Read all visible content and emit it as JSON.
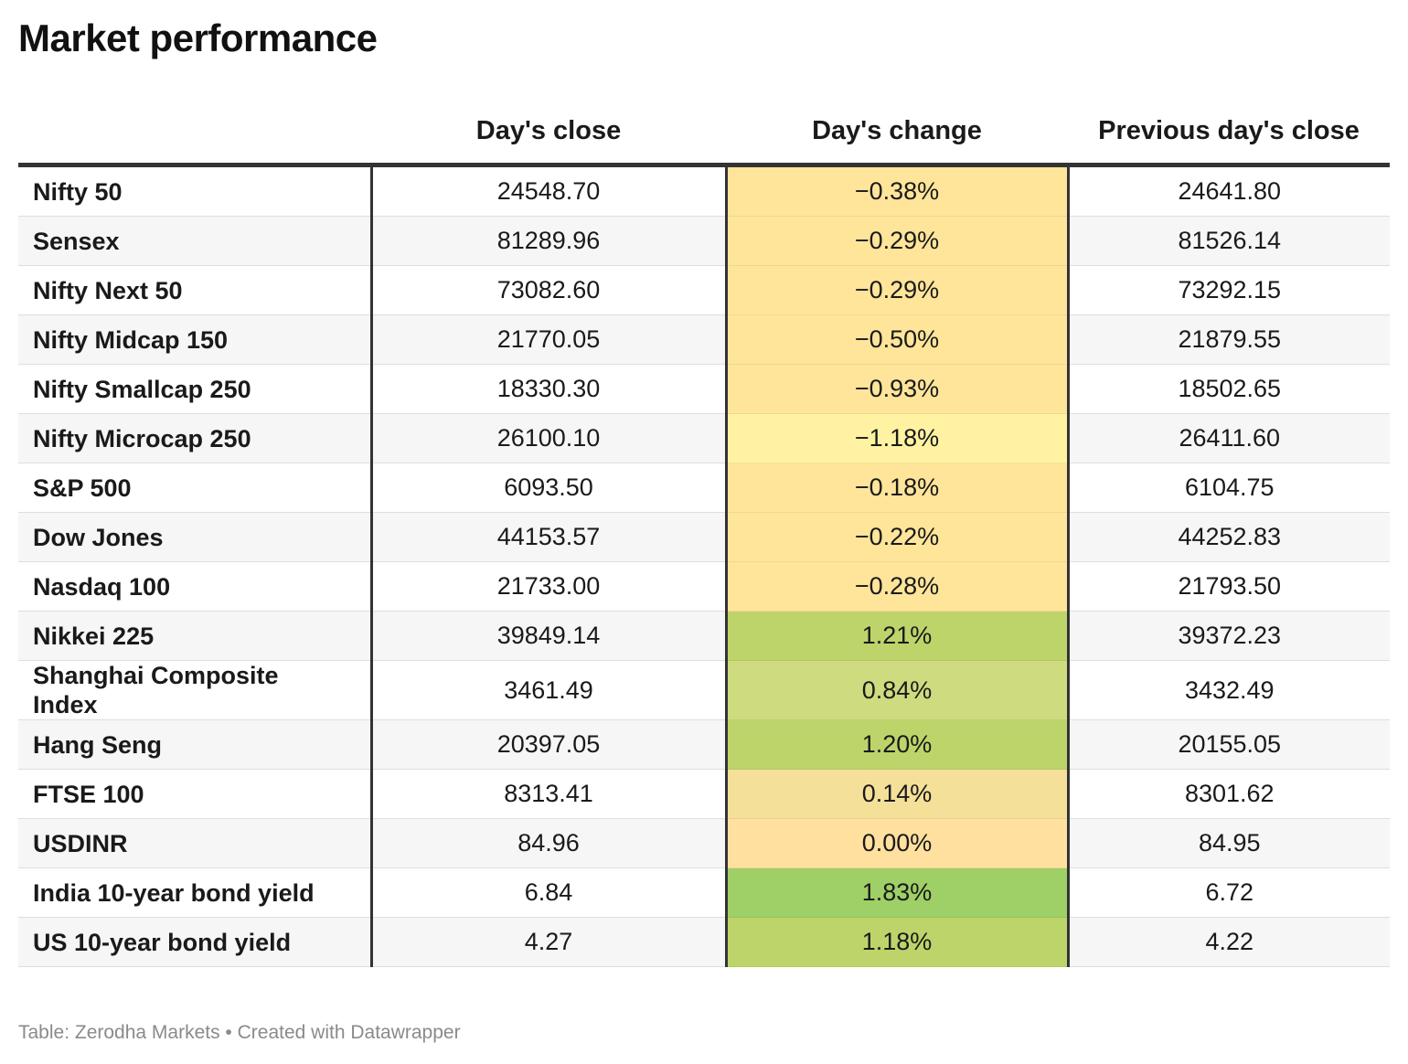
{
  "title": "Market performance",
  "footer": "Table: Zerodha Markets • Created with Datawrapper",
  "colors": {
    "negative_small": "#ffe59a",
    "negative_large": "#fff3a3",
    "near_zero": "#ffe09e",
    "positive_small": "#f5e09a",
    "positive_mid": "#cfdb7f",
    "positive_high": "#bdd46a",
    "positive_max": "#9fd067"
  },
  "chart_data": {
    "type": "table",
    "title": "Market performance",
    "columns": [
      "",
      "Day's close",
      "Day's change",
      "Previous day's close"
    ],
    "rows": [
      {
        "name": "Nifty 50",
        "close": "24548.70",
        "change": "−0.38%",
        "change_value": -0.38,
        "prev": "24641.80"
      },
      {
        "name": "Sensex",
        "close": "81289.96",
        "change": "−0.29%",
        "change_value": -0.29,
        "prev": "81526.14"
      },
      {
        "name": "Nifty Next 50",
        "close": "73082.60",
        "change": "−0.29%",
        "change_value": -0.29,
        "prev": "73292.15"
      },
      {
        "name": "Nifty Midcap 150",
        "close": "21770.05",
        "change": "−0.50%",
        "change_value": -0.5,
        "prev": "21879.55"
      },
      {
        "name": "Nifty Smallcap 250",
        "close": "18330.30",
        "change": "−0.93%",
        "change_value": -0.93,
        "prev": "18502.65"
      },
      {
        "name": "Nifty Microcap 250",
        "close": "26100.10",
        "change": "−1.18%",
        "change_value": -1.18,
        "prev": "26411.60"
      },
      {
        "name": "S&P 500",
        "close": "6093.50",
        "change": "−0.18%",
        "change_value": -0.18,
        "prev": "6104.75"
      },
      {
        "name": "Dow Jones",
        "close": "44153.57",
        "change": "−0.22%",
        "change_value": -0.22,
        "prev": "44252.83"
      },
      {
        "name": "Nasdaq 100",
        "close": "21733.00",
        "change": "−0.28%",
        "change_value": -0.28,
        "prev": "21793.50"
      },
      {
        "name": "Nikkei 225",
        "close": "39849.14",
        "change": "1.21%",
        "change_value": 1.21,
        "prev": "39372.23"
      },
      {
        "name": "Shanghai Composite Index",
        "close": "3461.49",
        "change": "0.84%",
        "change_value": 0.84,
        "prev": "3432.49"
      },
      {
        "name": "Hang Seng",
        "close": "20397.05",
        "change": "1.20%",
        "change_value": 1.2,
        "prev": "20155.05"
      },
      {
        "name": "FTSE 100",
        "close": "8313.41",
        "change": "0.14%",
        "change_value": 0.14,
        "prev": "8301.62"
      },
      {
        "name": "USDINR",
        "close": "84.96",
        "change": "0.00%",
        "change_value": 0.0,
        "prev": "84.95"
      },
      {
        "name": "India 10-year bond yield",
        "close": "6.84",
        "change": "1.83%",
        "change_value": 1.83,
        "prev": "6.72"
      },
      {
        "name": "US 10-year bond yield",
        "close": "4.27",
        "change": "1.18%",
        "change_value": 1.18,
        "prev": "4.22"
      }
    ]
  }
}
